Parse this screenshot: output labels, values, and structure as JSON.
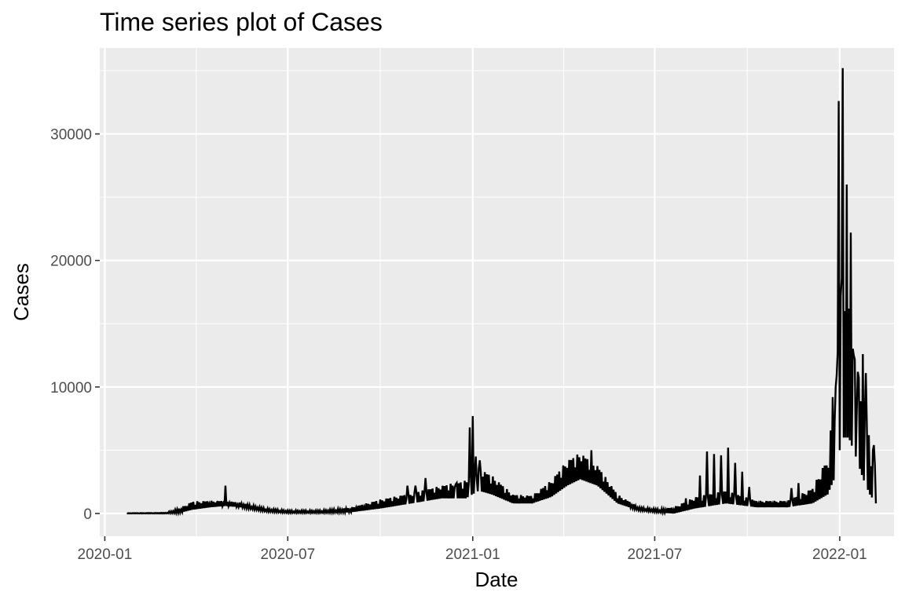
{
  "chart_data": {
    "type": "line",
    "title": "Time series plot of Cases",
    "xlabel": "Date",
    "ylabel": "Cases",
    "xlim": [
      "2019-12-27",
      "2022-02-24"
    ],
    "ylim": [
      -1800,
      36800
    ],
    "x_ticks": [
      "2020-01",
      "2020-07",
      "2021-01",
      "2021-07",
      "2022-01"
    ],
    "y_ticks": [
      "0",
      "10000",
      "20000",
      "30000"
    ],
    "y_tick_values": [
      0,
      10000,
      20000,
      30000
    ],
    "grid": true,
    "legend": "none",
    "colors": {
      "panel": "#ebebeb",
      "grid": "#ffffff",
      "line": "#000000",
      "tick_text": "#4d4d4d"
    },
    "series": [
      {
        "daily_oscillation": "high-low weekly spikes",
        "envelope": [
          {
            "date": "2020-01-23",
            "high": 30,
            "low": 0
          },
          {
            "date": "2020-03-01",
            "high": 60,
            "low": 0
          },
          {
            "date": "2020-03-15",
            "high": 400,
            "low": 50
          },
          {
            "date": "2020-03-28",
            "high": 950,
            "low": 300
          },
          {
            "date": "2020-04-15",
            "high": 1000,
            "low": 500
          },
          {
            "date": "2020-04-30",
            "high": 1000,
            "low": 600
          },
          {
            "date": "2020-05-15",
            "high": 850,
            "low": 500
          },
          {
            "date": "2020-06-10",
            "high": 400,
            "low": 150
          },
          {
            "date": "2020-07-01",
            "high": 250,
            "low": 50
          },
          {
            "date": "2020-08-01",
            "high": 250,
            "low": 50
          },
          {
            "date": "2020-09-01",
            "high": 450,
            "low": 100
          },
          {
            "date": "2020-10-01",
            "high": 1100,
            "low": 400
          },
          {
            "date": "2020-11-01",
            "high": 1600,
            "low": 800
          },
          {
            "date": "2020-12-01",
            "high": 2200,
            "low": 1200
          },
          {
            "date": "2020-12-25",
            "high": 2600,
            "low": 1200
          },
          {
            "date": "2021-01-07",
            "high": 3600,
            "low": 1800
          },
          {
            "date": "2021-01-20",
            "high": 3000,
            "low": 1500
          },
          {
            "date": "2021-02-10",
            "high": 1500,
            "low": 800
          },
          {
            "date": "2021-03-01",
            "high": 1400,
            "low": 800
          },
          {
            "date": "2021-03-20",
            "high": 2600,
            "low": 1300
          },
          {
            "date": "2021-04-05",
            "high": 4200,
            "low": 2200
          },
          {
            "date": "2021-04-18",
            "high": 4800,
            "low": 2700
          },
          {
            "date": "2021-05-05",
            "high": 3800,
            "low": 2200
          },
          {
            "date": "2021-05-25",
            "high": 1500,
            "low": 800
          },
          {
            "date": "2021-06-15",
            "high": 500,
            "low": 250
          },
          {
            "date": "2021-07-05",
            "high": 350,
            "low": 100
          },
          {
            "date": "2021-07-20",
            "high": 500,
            "low": 0
          },
          {
            "date": "2021-08-10",
            "high": 1300,
            "low": 400
          },
          {
            "date": "2021-09-10",
            "high": 1800,
            "low": 800
          },
          {
            "date": "2021-10-10",
            "high": 1000,
            "low": 500
          },
          {
            "date": "2021-11-10",
            "high": 1000,
            "low": 500
          },
          {
            "date": "2021-12-05",
            "high": 2000,
            "low": 800
          },
          {
            "date": "2021-12-20",
            "high": 4500,
            "low": 1500
          },
          {
            "date": "2021-12-28",
            "high": 10000,
            "low": 3000
          },
          {
            "date": "2022-01-03",
            "high": 17000,
            "low": 6000
          },
          {
            "date": "2022-01-10",
            "high": 16000,
            "low": 6000
          },
          {
            "date": "2022-01-17",
            "high": 12000,
            "low": 4500
          },
          {
            "date": "2022-01-24",
            "high": 9000,
            "low": 2800
          },
          {
            "date": "2022-01-31",
            "high": 6000,
            "low": 1500
          },
          {
            "date": "2022-02-06",
            "high": 4000,
            "low": 800
          }
        ],
        "spikes": [
          {
            "date": "2020-04-30",
            "value": 2200
          },
          {
            "date": "2020-10-28",
            "value": 2200
          },
          {
            "date": "2020-11-05",
            "value": 2200
          },
          {
            "date": "2020-11-15",
            "value": 2800
          },
          {
            "date": "2020-12-15",
            "value": 2300
          },
          {
            "date": "2020-12-29",
            "value": 6800
          },
          {
            "date": "2021-01-01",
            "value": 7700
          },
          {
            "date": "2021-01-04",
            "value": 4500
          },
          {
            "date": "2021-01-08",
            "value": 4200
          },
          {
            "date": "2021-04-29",
            "value": 5000
          },
          {
            "date": "2021-08-01",
            "value": 1200
          },
          {
            "date": "2021-08-15",
            "value": 3000
          },
          {
            "date": "2021-08-22",
            "value": 4900
          },
          {
            "date": "2021-08-29",
            "value": 4700
          },
          {
            "date": "2021-09-05",
            "value": 4600
          },
          {
            "date": "2021-09-12",
            "value": 5200
          },
          {
            "date": "2021-09-19",
            "value": 4000
          },
          {
            "date": "2021-09-26",
            "value": 3300
          },
          {
            "date": "2021-10-03",
            "value": 2100
          },
          {
            "date": "2021-11-14",
            "value": 2000
          },
          {
            "date": "2021-11-21",
            "value": 2400
          },
          {
            "date": "2021-12-19",
            "value": 3800
          },
          {
            "date": "2021-12-25",
            "value": 9200
          },
          {
            "date": "2021-12-28",
            "value": 10000
          },
          {
            "date": "2021-12-30",
            "value": 12800
          },
          {
            "date": "2021-12-31",
            "value": 32600
          },
          {
            "date": "2022-01-02",
            "value": 17200
          },
          {
            "date": "2022-01-03",
            "value": 18600
          },
          {
            "date": "2022-01-04",
            "value": 35200
          },
          {
            "date": "2022-01-06",
            "value": 16000
          },
          {
            "date": "2022-01-08",
            "value": 26000
          },
          {
            "date": "2022-01-10",
            "value": 16200
          },
          {
            "date": "2022-01-12",
            "value": 22200
          },
          {
            "date": "2022-01-15",
            "value": 12500
          },
          {
            "date": "2022-01-19",
            "value": 11200
          },
          {
            "date": "2022-01-24",
            "value": 12600
          },
          {
            "date": "2022-01-27",
            "value": 11100
          },
          {
            "date": "2022-02-04",
            "value": 5400
          }
        ]
      }
    ]
  }
}
